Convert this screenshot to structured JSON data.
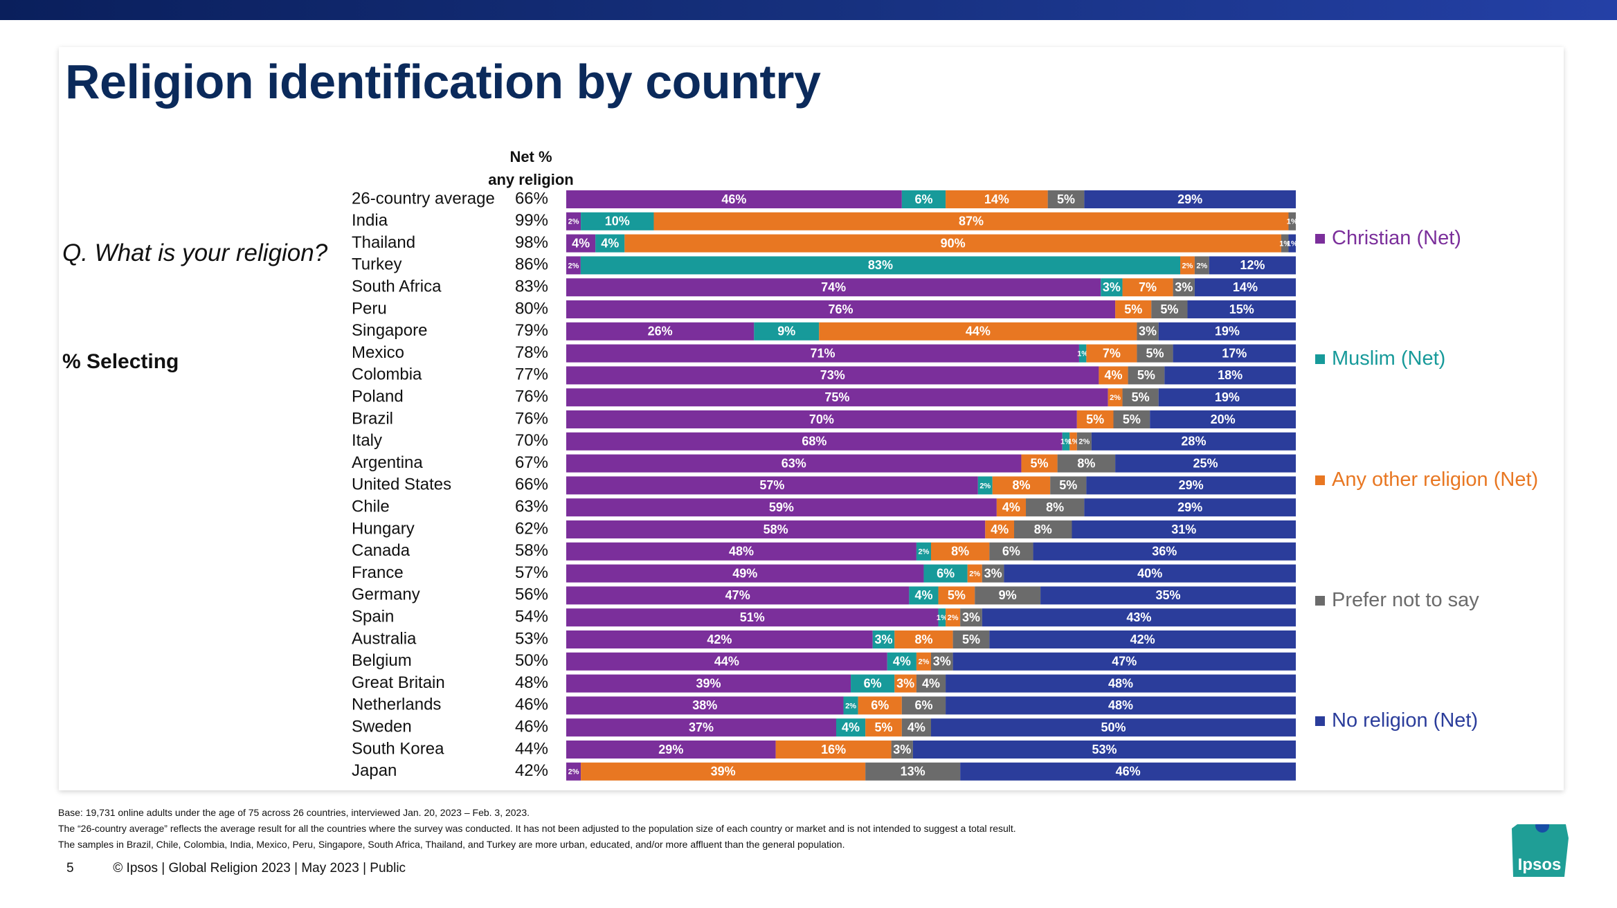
{
  "title": "Religion identification by country",
  "question": "Q. What is your religion?",
  "selecting": "% Selecting",
  "net_header": [
    "Net %",
    "any religion"
  ],
  "colors": {
    "Christian (Net)": "#7b2f9b",
    "Muslim (Net)": "#179a9a",
    "Any other religion (Net)": "#e87722",
    "Prefer not to say": "#6b6b6b",
    "No religion (Net)": "#2b3d9b",
    "title": "#0b2a5b",
    "topbar": "#16307d"
  },
  "legend": [
    {
      "label": "Christian (Net)",
      "color": "#7b2f9b"
    },
    {
      "label": "Muslim (Net)",
      "color": "#179a9a"
    },
    {
      "label": "Any other religion (Net)",
      "color": "#e87722"
    },
    {
      "label": "Prefer not to say",
      "color": "#6b6b6b"
    },
    {
      "label": "No religion (Net)",
      "color": "#2b3d9b"
    }
  ],
  "chart_data": {
    "type": "bar",
    "orientation": "horizontal",
    "stacked": true,
    "categories": [
      "26-country average",
      "India",
      "Thailand",
      "Turkey",
      "South Africa",
      "Peru",
      "Singapore",
      "Mexico",
      "Colombia",
      "Poland",
      "Brazil",
      "Italy",
      "Argentina",
      "United States",
      "Chile",
      "Hungary",
      "Canada",
      "France",
      "Germany",
      "Spain",
      "Australia",
      "Belgium",
      "Great Britain",
      "Netherlands",
      "Sweden",
      "South Korea",
      "Japan"
    ],
    "net_any_religion": [
      "66%",
      "99%",
      "98%",
      "86%",
      "83%",
      "80%",
      "79%",
      "78%",
      "77%",
      "76%",
      "76%",
      "70%",
      "67%",
      "66%",
      "63%",
      "62%",
      "58%",
      "57%",
      "56%",
      "54%",
      "53%",
      "50%",
      "48%",
      "46%",
      "46%",
      "44%",
      "42%"
    ],
    "series": [
      {
        "name": "Christian (Net)",
        "values": [
          46,
          2,
          4,
          2,
          74,
          76,
          26,
          71,
          73,
          75,
          70,
          68,
          63,
          57,
          59,
          58,
          48,
          49,
          47,
          51,
          42,
          44,
          39,
          38,
          37,
          29,
          2
        ]
      },
      {
        "name": "Muslim (Net)",
        "values": [
          6,
          10,
          4,
          83,
          3,
          0,
          9,
          1,
          0,
          0,
          0,
          1,
          0,
          2,
          0,
          0,
          2,
          6,
          4,
          1,
          3,
          4,
          6,
          2,
          4,
          0,
          0
        ]
      },
      {
        "name": "Any other religion (Net)",
        "values": [
          14,
          87,
          90,
          2,
          7,
          5,
          44,
          7,
          4,
          2,
          5,
          1,
          5,
          8,
          4,
          4,
          8,
          2,
          5,
          2,
          8,
          2,
          3,
          6,
          5,
          16,
          39
        ]
      },
      {
        "name": "Prefer not to say",
        "values": [
          5,
          1,
          1,
          2,
          3,
          5,
          3,
          5,
          5,
          5,
          5,
          2,
          8,
          5,
          8,
          8,
          6,
          3,
          9,
          3,
          5,
          3,
          4,
          6,
          4,
          3,
          13
        ]
      },
      {
        "name": "No religion (Net)",
        "values": [
          29,
          0,
          1,
          12,
          14,
          15,
          19,
          17,
          18,
          19,
          20,
          28,
          25,
          29,
          29,
          31,
          36,
          40,
          35,
          43,
          42,
          47,
          48,
          48,
          50,
          53,
          46
        ]
      }
    ],
    "data_labels": [
      [
        "46%",
        "6%",
        "14%",
        "5%",
        "29%"
      ],
      [
        "2%",
        "10%",
        "87%",
        "1%",
        ""
      ],
      [
        "4%",
        "4%",
        "90%",
        "1%",
        "1%"
      ],
      [
        "2%",
        "83%",
        "2%",
        "2%",
        "12%"
      ],
      [
        "74%",
        "3%",
        "7%",
        "3%",
        "14%"
      ],
      [
        "76%",
        "",
        "5%",
        "5%",
        "15%"
      ],
      [
        "26%",
        "9%",
        "44%",
        "3%",
        "19%"
      ],
      [
        "71%",
        "1%",
        "7%",
        "5%",
        "17%"
      ],
      [
        "73%",
        "",
        "4%",
        "5%",
        "18%"
      ],
      [
        "75%",
        "",
        "2%",
        "5%",
        "19%"
      ],
      [
        "70%",
        "",
        "5%",
        "5%",
        "20%"
      ],
      [
        "68%",
        "1%",
        "1%",
        "2%",
        "28%"
      ],
      [
        "63%",
        "",
        "5%",
        "8%",
        "25%"
      ],
      [
        "57%",
        "2%",
        "8%",
        "5%",
        "29%"
      ],
      [
        "59%",
        "",
        "4%",
        "8%",
        "29%"
      ],
      [
        "58%",
        "",
        "4%",
        "8%",
        "31%"
      ],
      [
        "48%",
        "2%",
        "8%",
        "6%",
        "36%"
      ],
      [
        "49%",
        "6%",
        "2%",
        "3%",
        "40%"
      ],
      [
        "47%",
        "4%",
        "5%",
        "9%",
        "35%"
      ],
      [
        "51%",
        "1%",
        "2%",
        "3%",
        "43%"
      ],
      [
        "42%",
        "3%",
        "8%",
        "5%",
        "42%"
      ],
      [
        "44%",
        "4%",
        "2%",
        "3%",
        "47%"
      ],
      [
        "39%",
        "6%",
        "3%",
        "4%",
        "48%"
      ],
      [
        "38%",
        "2%",
        "6%",
        "6%",
        "48%"
      ],
      [
        "37%",
        "4%",
        "5%",
        "4%",
        "50%"
      ],
      [
        "29%",
        "",
        "16%",
        "3%",
        "53%"
      ],
      [
        "2%",
        "",
        "39%",
        "13%",
        "46%"
      ]
    ],
    "xlim": [
      0,
      100
    ],
    "legend_position": "right",
    "grid": false
  },
  "footnotes": [
    "Base: 19,731 online adults under the age of 75 across 26 countries, interviewed Jan. 20, 2023 – Feb. 3, 2023.",
    "The “26-country average” reflects the average result for all the countries where the survey was conducted. It has not been adjusted to the population size of each country or market and is not intended to suggest a total result.",
    "The samples in Brazil, Chile, Colombia, India, Mexico, Peru, Singapore, South Africa, Thailand, and Turkey are more urban, educated, and/or more affluent than the general population."
  ],
  "footer": {
    "page_number": "5",
    "text": "© Ipsos | Global Religion 2023 | May 2023 | Public"
  },
  "logo_text": "Ipsos"
}
